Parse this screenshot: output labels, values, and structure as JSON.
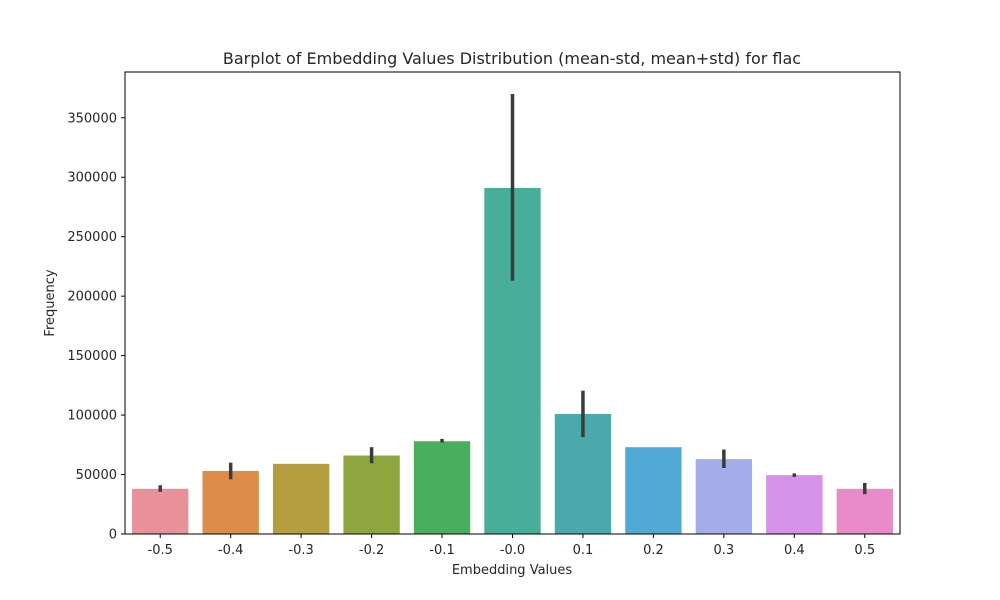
{
  "chart_data": {
    "type": "bar",
    "title": "Barplot of Embedding Values Distribution (mean-std, mean+std) for flac",
    "xlabel": "Embedding Values",
    "ylabel": "Frequency",
    "categories": [
      "-0.5",
      "-0.4",
      "-0.3",
      "-0.2",
      "-0.1",
      "-0.0",
      "0.1",
      "0.2",
      "0.3",
      "0.4",
      "0.5"
    ],
    "values": [
      38000,
      53000,
      59000,
      66000,
      78000,
      291000,
      101000,
      73000,
      63000,
      49500,
      38000
    ],
    "error_low": [
      35500,
      46000,
      59000,
      59500,
      77000,
      213000,
      81500,
      73000,
      55500,
      48000,
      33500
    ],
    "error_high": [
      41000,
      60000,
      59000,
      73000,
      80000,
      370000,
      120500,
      73000,
      71000,
      51000,
      43000
    ],
    "bar_colors": [
      "#E8919B",
      "#DC8E49",
      "#B59E3F",
      "#8FA63F",
      "#49AF5F",
      "#48AD99",
      "#4AA9AB",
      "#51A9D6",
      "#A5ADE9",
      "#D592E8",
      "#E98BC8"
    ],
    "yticks": [
      "0",
      "50000",
      "100000",
      "150000",
      "200000",
      "250000",
      "300000",
      "350000"
    ],
    "ytick_values": [
      0,
      50000,
      100000,
      150000,
      200000,
      250000,
      300000,
      350000
    ],
    "ylim": [
      0,
      388500
    ],
    "grid": false,
    "error_bar_color": "#3b3b3b"
  }
}
